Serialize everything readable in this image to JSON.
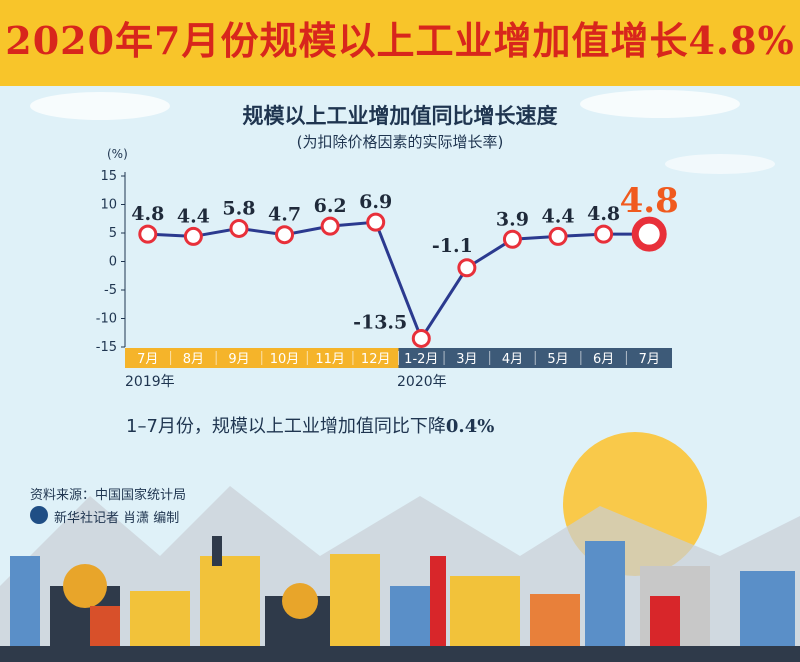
{
  "title": "2020年7月份规模以上工业增加值增长4.8%",
  "chart_data": {
    "type": "line",
    "title": "规模以上工业增加值同比增长速度",
    "subtitle": "(为扣除价格因素的实际增长率)",
    "ylabel": "(%)",
    "ylim": [
      -15,
      15
    ],
    "yticks": [
      15,
      10,
      5,
      0,
      -5,
      -10,
      -15
    ],
    "categories": [
      "7月",
      "8月",
      "9月",
      "10月",
      "11月",
      "12月",
      "1-2月",
      "3月",
      "4月",
      "5月",
      "6月",
      "7月"
    ],
    "values": [
      4.8,
      4.4,
      5.8,
      4.7,
      6.2,
      6.9,
      -13.5,
      -1.1,
      3.9,
      4.4,
      4.8,
      4.8
    ],
    "year_groups": [
      {
        "label": "2019年",
        "count": 6,
        "color": "#f5b42a"
      },
      {
        "label": "2020年",
        "count": 6,
        "color": "#3d5a78"
      }
    ],
    "colors": {
      "line": "#2b3a8f",
      "marker": "#e8303a",
      "highlight": "#f05a1e"
    }
  },
  "note": {
    "text": "1–7月份，规模以上工业增加值同比下降",
    "value": "0.4%"
  },
  "source": "资料来源：中国国家统计局",
  "credit": "新华社记者  肖潇  编制"
}
